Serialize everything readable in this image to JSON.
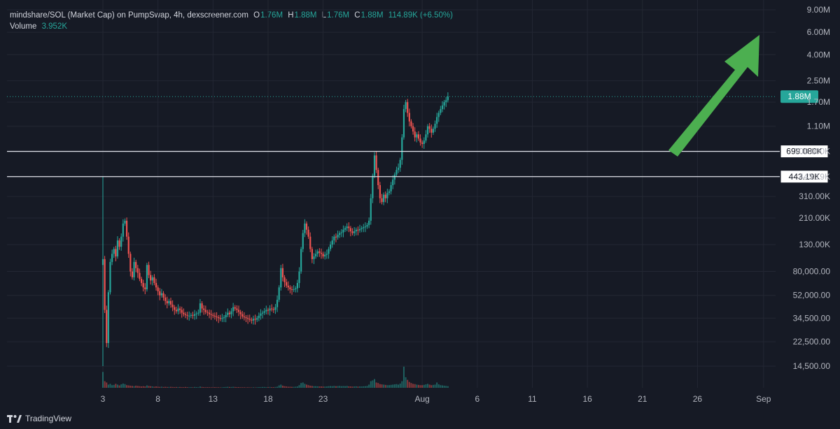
{
  "header": {
    "symbol": "mindshare/SOL (Market Cap) on PumpSwap, 4h, dexscreener.com",
    "o_label": "O",
    "o_value": "1.76M",
    "h_label": "H",
    "h_value": "1.88M",
    "l_label": "L",
    "l_value": "1.76M",
    "c_label": "C",
    "c_value": "1.88M",
    "change": "114.89K (+6.50%)",
    "volume_label": "Volume",
    "volume_value": "3.952K"
  },
  "footer": {
    "brand": "TradingView",
    "logo_icon": "tradingview-logo-icon"
  },
  "colors": {
    "background": "#161a25",
    "up": "#26a69a",
    "down": "#ef5350",
    "grid": "#232733",
    "arrow": "#4caf50",
    "level_line": "#e0e3eb"
  },
  "chart_data": {
    "type": "candlestick",
    "scale": "log",
    "y_range": [
      12000,
      9000000
    ],
    "y_tick_labels": [
      "9.00M",
      "6.00M",
      "4.00M",
      "2.50M",
      "1.70M",
      "1.10M",
      "700.000K",
      "443.19K",
      "310.00K",
      "210.00K",
      "130.00K",
      "80,000.00",
      "52,000.00",
      "34,500.00",
      "22,500.00",
      "14,500.00"
    ],
    "y_tick_values": [
      9000000,
      6000000,
      4000000,
      2500000,
      1700000,
      1100000,
      700000,
      443190,
      310000,
      210000,
      130000,
      80000,
      52000,
      34500,
      22500,
      14500
    ],
    "x_tick_labels": [
      "3",
      "8",
      "13",
      "18",
      "23",
      "Aug",
      "6",
      "11",
      "16",
      "21",
      "26",
      "Sep"
    ],
    "x_tick_days": [
      3,
      8,
      13,
      18,
      23,
      32,
      37,
      42,
      47,
      52,
      57,
      63
    ],
    "x_start_day": 3,
    "candles_per_day": 6,
    "last_price_label": "1.88M",
    "last_price": 1880000,
    "horizontal_levels": [
      {
        "label": "699.080K",
        "value": 699080
      },
      {
        "label": "443.19K",
        "value": 443190
      }
    ],
    "annotation": "green-arrow-up",
    "closes": [
      100000,
      40000,
      22000,
      55000,
      95000,
      110000,
      120000,
      105000,
      140000,
      125000,
      150000,
      190000,
      200000,
      150000,
      110000,
      80000,
      72000,
      95000,
      85000,
      78000,
      70000,
      65000,
      60000,
      58000,
      90000,
      75000,
      68000,
      72000,
      65000,
      60000,
      56000,
      52000,
      54000,
      50000,
      47000,
      45000,
      47000,
      44000,
      42000,
      40000,
      39000,
      41000,
      40000,
      38000,
      37000,
      36500,
      36000,
      36000,
      36500,
      36000,
      37000,
      37500,
      38000,
      45000,
      41000,
      40000,
      38500,
      38000,
      37000,
      36500,
      36000,
      35500,
      35000,
      34500,
      34000,
      34500,
      35000,
      36500,
      38000,
      37000,
      39000,
      42000,
      41000,
      40000,
      38500,
      37000,
      35500,
      35000,
      34500,
      34000,
      33500,
      33000,
      34000,
      33500,
      34500,
      36000,
      37500,
      38000,
      39000,
      40000,
      39500,
      41000,
      40500,
      40000,
      42000,
      48000,
      60000,
      85000,
      72000,
      66000,
      62000,
      60000,
      58000,
      57500,
      58000,
      59000,
      65000,
      80000,
      120000,
      160000,
      190000,
      170000,
      150000,
      120000,
      100000,
      105000,
      110000,
      115000,
      112000,
      110000,
      105000,
      108000,
      110000,
      120000,
      130000,
      140000,
      150000,
      148000,
      155000,
      160000,
      162000,
      170000,
      175000,
      180000,
      175000,
      165000,
      160000,
      165000,
      170000,
      168000,
      172000,
      175000,
      178000,
      180000,
      185000,
      200000,
      300000,
      450000,
      650000,
      500000,
      380000,
      300000,
      280000,
      320000,
      300000,
      330000,
      340000,
      380000,
      420000,
      460000,
      500000,
      520000,
      600000,
      900000,
      1500000,
      1700000,
      1400000,
      1200000,
      1100000,
      1000000,
      900000,
      950000,
      880000,
      820000,
      800000,
      850000,
      950000,
      1100000,
      1050000,
      980000,
      1050000,
      1150000,
      1300000,
      1400000,
      1500000,
      1600000,
      1700000,
      1760000,
      1880000
    ],
    "volumes": [
      600,
      250,
      200,
      120,
      150,
      100,
      110,
      150,
      120,
      90,
      130,
      160,
      140,
      100,
      90,
      80,
      70,
      60,
      80,
      70,
      60,
      50,
      60,
      50,
      90,
      70,
      60,
      50,
      40,
      50,
      40,
      35,
      40,
      30,
      35,
      30,
      30,
      35,
      30,
      25,
      30,
      25,
      30,
      25,
      25,
      30,
      25,
      20,
      25,
      20,
      30,
      25,
      20,
      45,
      30,
      25,
      20,
      25,
      20,
      20,
      20,
      25,
      20,
      20,
      15,
      20,
      25,
      30,
      35,
      30,
      30,
      35,
      30,
      25,
      25,
      20,
      20,
      20,
      15,
      20,
      15,
      15,
      20,
      15,
      20,
      25,
      25,
      30,
      30,
      25,
      25,
      30,
      25,
      25,
      30,
      40,
      90,
      120,
      80,
      60,
      50,
      40,
      40,
      35,
      35,
      40,
      50,
      100,
      180,
      200,
      150,
      120,
      100,
      80,
      70,
      60,
      60,
      55,
      50,
      50,
      45,
      45,
      50,
      60,
      65,
      60,
      70,
      60,
      65,
      70,
      60,
      65,
      60,
      70,
      55,
      50,
      45,
      50,
      55,
      45,
      50,
      50,
      55,
      60,
      70,
      120,
      250,
      280,
      330,
      200,
      180,
      140,
      130,
      120,
      110,
      100,
      100,
      110,
      120,
      130,
      140,
      120,
      160,
      250,
      800,
      400,
      300,
      220,
      180,
      150,
      140,
      120,
      110,
      100,
      100,
      110,
      130,
      150,
      120,
      100,
      110,
      120,
      200,
      130,
      100,
      90,
      80,
      70,
      60
    ]
  }
}
